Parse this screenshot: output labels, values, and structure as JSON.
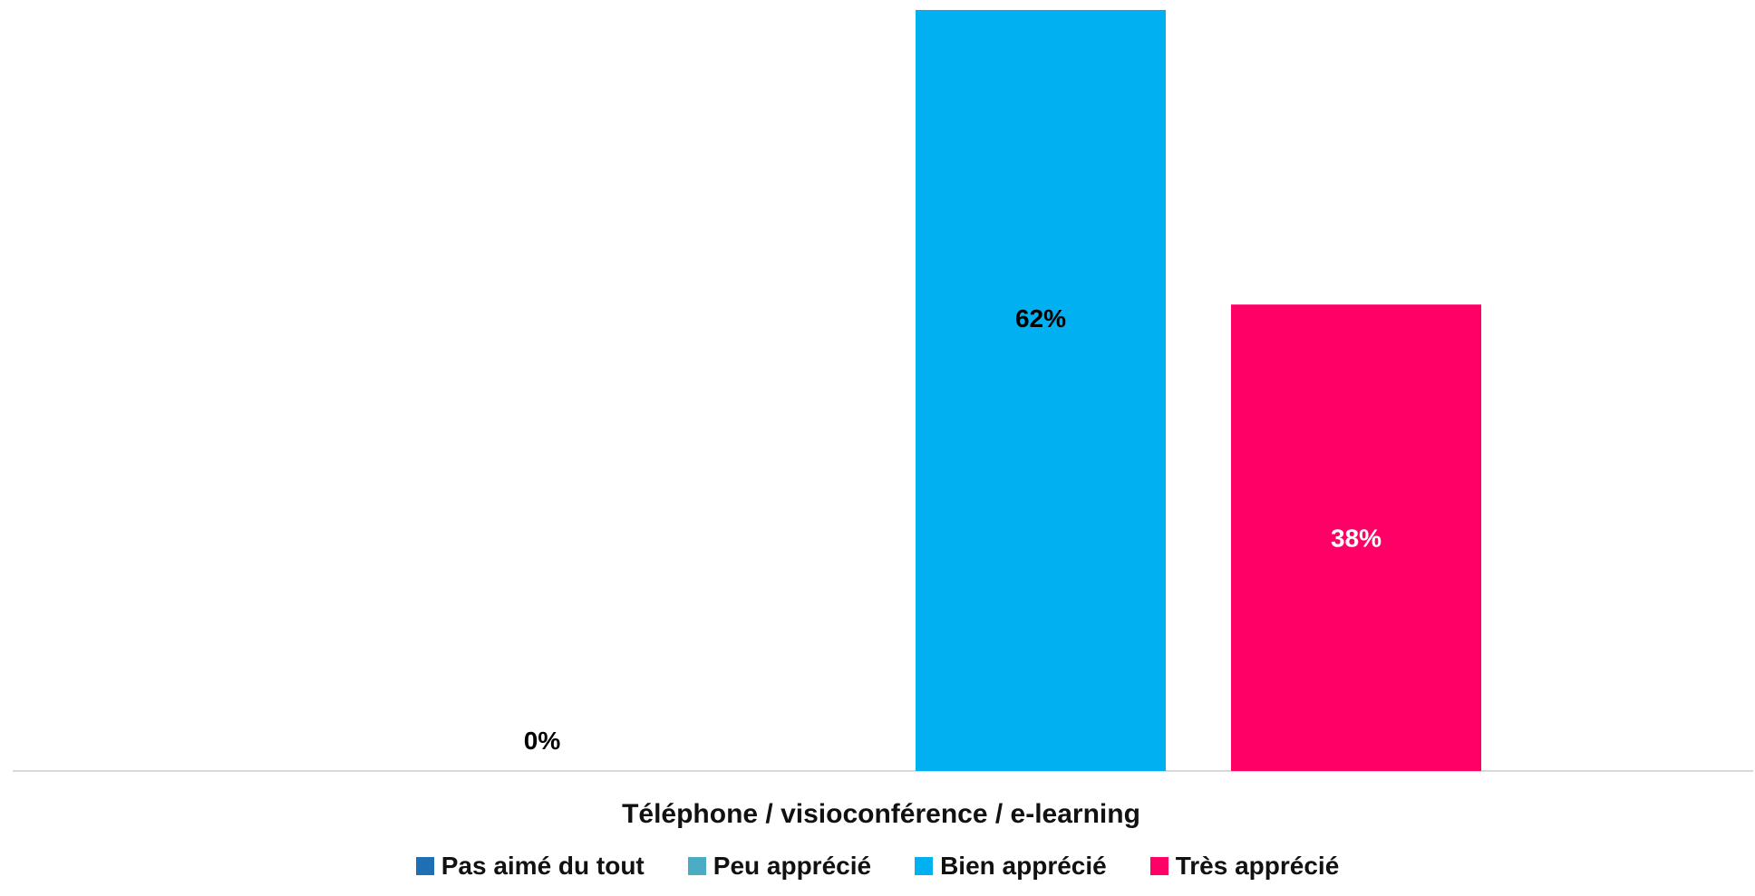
{
  "chart_data": {
    "type": "bar",
    "categories": [
      "Téléphone / visioconférence / e-learning"
    ],
    "xlabel": "Téléphone / visioconférence / e-learning",
    "ylabel": "",
    "ylim": [
      0,
      62
    ],
    "grid": false,
    "legend_position": "bottom",
    "series": [
      {
        "name": "Pas aimé du tout",
        "values": [
          0
        ],
        "label": "",
        "color": "#1f6fb4",
        "label_color": "#000000"
      },
      {
        "name": "Peu apprécié",
        "values": [
          0
        ],
        "label": "0%",
        "color": "#4bacc6",
        "label_color": "#000000"
      },
      {
        "name": "Bien apprécié",
        "values": [
          62
        ],
        "label": "62%",
        "color": "#00b0f0",
        "label_color": "#000000"
      },
      {
        "name": "Très apprécié",
        "values": [
          38
        ],
        "label": "38%",
        "color": "#ff0066",
        "label_color": "#ffffff"
      }
    ]
  }
}
